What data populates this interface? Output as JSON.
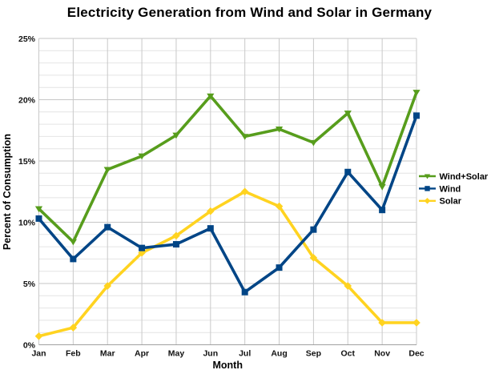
{
  "chart_data": {
    "type": "line",
    "title": "Electricity Generation from Wind and Solar in Germany",
    "xlabel": "Month",
    "ylabel": "Percent of Consumption",
    "categories": [
      "Jan",
      "Feb",
      "Mar",
      "Apr",
      "May",
      "Jun",
      "Jul",
      "Aug",
      "Sep",
      "Oct",
      "Nov",
      "Dec"
    ],
    "series": [
      {
        "name": "Wind+Solar",
        "color": "#579D1C",
        "marker": "triangle-down",
        "values": [
          11.1,
          8.4,
          14.3,
          15.4,
          17.1,
          20.3,
          17.0,
          17.6,
          16.5,
          18.9,
          12.9,
          20.6
        ]
      },
      {
        "name": "Wind",
        "color": "#004586",
        "marker": "square",
        "values": [
          10.3,
          7.0,
          9.6,
          7.9,
          8.2,
          9.5,
          4.3,
          6.3,
          9.4,
          14.1,
          11.0,
          18.7
        ]
      },
      {
        "name": "Solar",
        "color": "#FFD320",
        "marker": "diamond",
        "values": [
          0.7,
          1.4,
          4.8,
          7.5,
          8.9,
          10.9,
          12.5,
          11.3,
          7.1,
          4.8,
          1.8,
          1.8
        ]
      }
    ],
    "ylim": [
      0,
      25
    ],
    "yticks": {
      "values": [
        0,
        5,
        10,
        15,
        20,
        25
      ],
      "labels": [
        "0%",
        "5%",
        "10%",
        "15%",
        "20%",
        "25%"
      ]
    },
    "minor_grid_step": 1,
    "grid": true,
    "legend_position": "right",
    "grid_colors": {
      "minor": "#e4e4e4",
      "major": "#c6c6c6",
      "vertical": "#c9c9c9",
      "axis": "#a0a0a0"
    }
  }
}
